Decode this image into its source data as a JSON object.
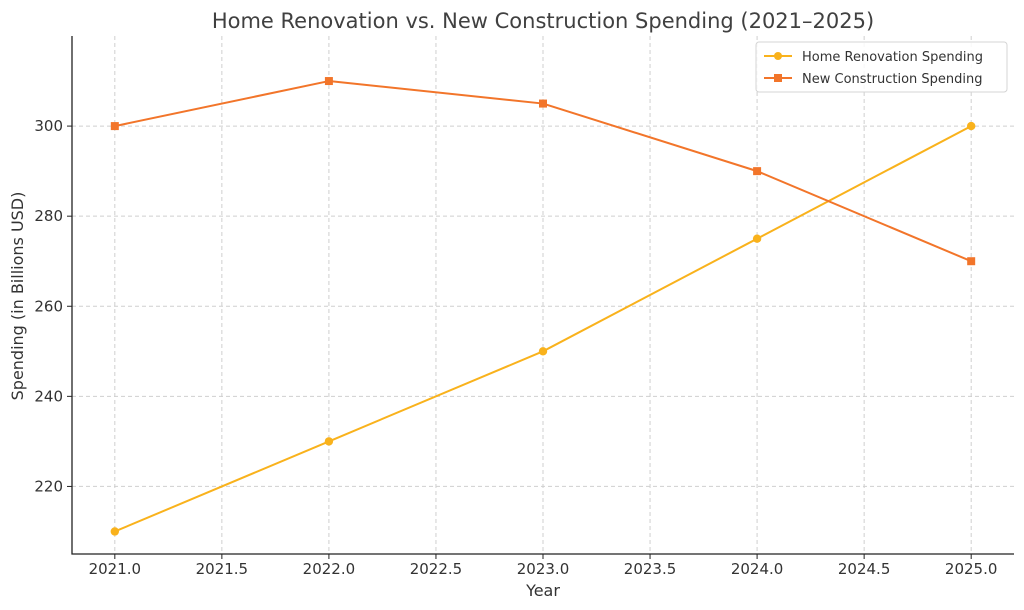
{
  "chart_data": {
    "type": "line",
    "title": "Home Renovation vs. New Construction Spending (2021–2025)",
    "xlabel": "Year",
    "ylabel": "Spending (in Billions USD)",
    "x": [
      2021,
      2022,
      2023,
      2024,
      2025
    ],
    "xlim": [
      2020.8,
      2025.2
    ],
    "ylim": [
      205,
      320
    ],
    "xticks": [
      "2021.0",
      "2021.5",
      "2022.0",
      "2022.5",
      "2023.0",
      "2023.5",
      "2024.0",
      "2024.5",
      "2025.0"
    ],
    "yticks": [
      "220",
      "240",
      "260",
      "280",
      "300"
    ],
    "grid": true,
    "legend_position": "top-right",
    "series": [
      {
        "name": "Home Renovation Spending",
        "values": [
          210,
          230,
          250,
          275,
          300
        ],
        "color": "#F9B21C",
        "marker": "circle"
      },
      {
        "name": "New Construction Spending",
        "values": [
          300,
          310,
          305,
          290,
          270
        ],
        "color": "#F2752A",
        "marker": "square"
      }
    ]
  }
}
